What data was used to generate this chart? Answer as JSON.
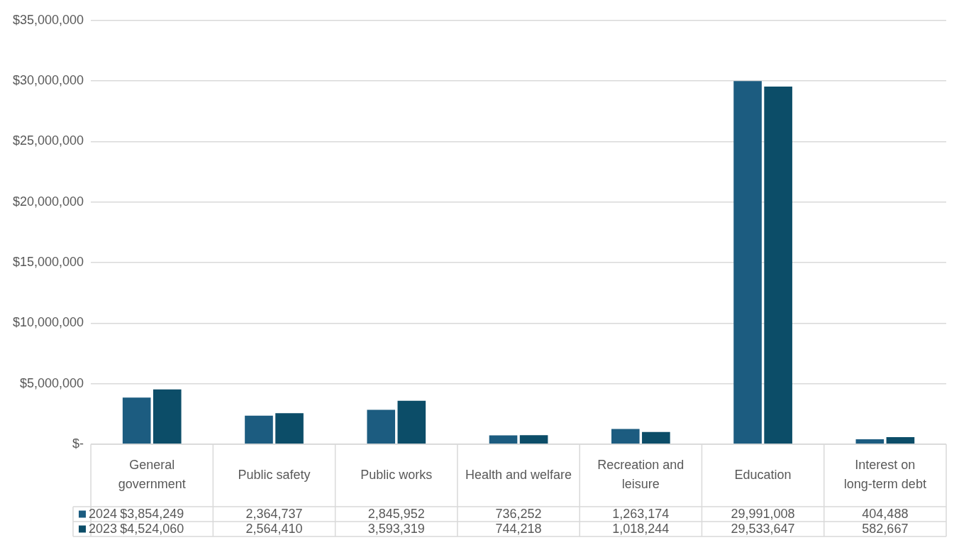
{
  "chart_data": {
    "type": "bar",
    "categories": [
      "General government",
      "Public safety",
      "Public works",
      "Health and welfare",
      "Recreation and leisure",
      "Education",
      "Interest on long-term debt"
    ],
    "series": [
      {
        "name": "2024",
        "color": "#1c5c80",
        "values": [
          3854249,
          2364737,
          2845952,
          736252,
          1263174,
          29991008,
          404488
        ],
        "value_labels": [
          "$3,854,249",
          "2,364,737",
          "2,845,952",
          "736,252",
          "1,263,174",
          "29,991,008",
          "404,488"
        ]
      },
      {
        "name": "2023",
        "color": "#0c4d68",
        "values": [
          4524060,
          2564410,
          3593319,
          744218,
          1018244,
          29533647,
          582667
        ],
        "value_labels": [
          "$4,524,060",
          "2,564,410",
          "3,593,319",
          "744,218",
          "1,018,244",
          "29,533,647",
          "582,667"
        ]
      }
    ],
    "ylim": [
      0,
      35000000
    ],
    "yticks": [
      {
        "value": 0,
        "label": "$-"
      },
      {
        "value": 5000000,
        "label": "$5,000,000"
      },
      {
        "value": 10000000,
        "label": "$10,000,000"
      },
      {
        "value": 15000000,
        "label": "$15,000,000"
      },
      {
        "value": 20000000,
        "label": "$20,000,000"
      },
      {
        "value": 25000000,
        "label": "$25,000,000"
      },
      {
        "value": 30000000,
        "label": "$30,000,000"
      },
      {
        "value": 35000000,
        "label": "$35,000,000"
      }
    ],
    "grid": "y",
    "legend": "bottom"
  }
}
